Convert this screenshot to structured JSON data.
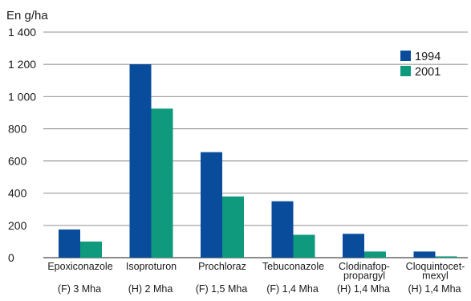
{
  "chart_data": {
    "type": "bar",
    "title": "",
    "ylabel": "En g/ha",
    "xlabel": "",
    "ylim": [
      0,
      1400
    ],
    "yticks": [
      0,
      200,
      400,
      600,
      800,
      1000,
      1200,
      1400
    ],
    "ytick_labels": [
      "0",
      "200",
      "400",
      "600",
      "800",
      "1 000",
      "1 200",
      "1 400"
    ],
    "grid": true,
    "legend_position": "top-right",
    "categories": [
      [
        "Epoxiconazole"
      ],
      [
        "Isoproturon"
      ],
      [
        "Prochloraz"
      ],
      [
        "Tebuconazole"
      ],
      [
        "Clodinafop-",
        "propargyl"
      ],
      [
        "Cloquintocet-",
        "mexyl"
      ]
    ],
    "sublabels": [
      "(F) 3 Mha",
      "(H) 2 Mha",
      "(F) 1,5 Mha",
      "(F) 1,4 Mha",
      "(H) 1,4 Mha",
      "(H) 1,4 Mha"
    ],
    "series": [
      {
        "name": "1994",
        "color": "#0a4c9c",
        "values": [
          175,
          1200,
          655,
          350,
          148,
          38
        ]
      },
      {
        "name": "2001",
        "color": "#0f9a7e",
        "values": [
          100,
          925,
          380,
          142,
          38,
          8
        ]
      }
    ]
  }
}
